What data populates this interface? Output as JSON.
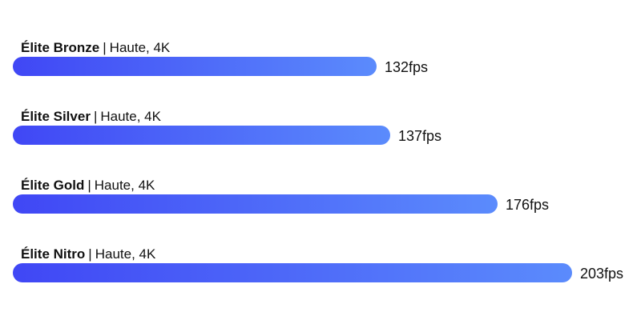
{
  "chart_data": {
    "type": "bar",
    "orientation": "horizontal",
    "categories": [
      "Élite Bronze",
      "Élite Silver",
      "Élite Gold",
      "Élite Nitro"
    ],
    "details": [
      "Haute, 4K",
      "Haute, 4K",
      "Haute, 4K",
      "Haute, 4K"
    ],
    "values": [
      132,
      137,
      176,
      203
    ],
    "value_labels": [
      "132fps",
      "137fps",
      "176fps",
      "203fps"
    ],
    "separator": "|",
    "unit": "fps",
    "xlim": [
      0,
      203
    ],
    "grid": false,
    "legend": "none",
    "bar_gradient": [
      "#4047f5",
      "#5b8bfc"
    ]
  }
}
